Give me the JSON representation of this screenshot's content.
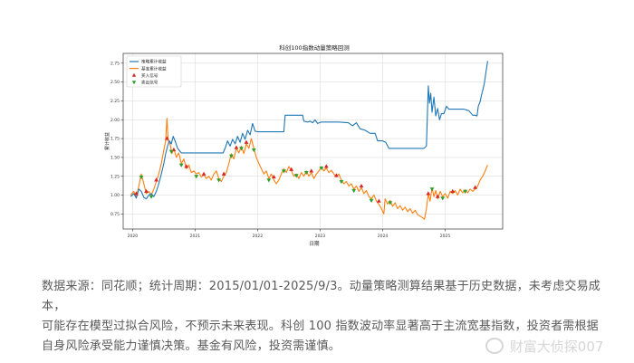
{
  "chart_data": {
    "type": "line",
    "title": "科创100指数动量策略回测",
    "xlabel": "日期",
    "ylabel": "累计收益",
    "xlim": [
      2019.85,
      2025.92
    ],
    "ylim": [
      0.55,
      2.88
    ],
    "x_ticks": [
      {
        "v": 2020,
        "label": "2020"
      },
      {
        "v": 2021,
        "label": "2021"
      },
      {
        "v": 2022,
        "label": "2022"
      },
      {
        "v": 2023,
        "label": "2023"
      },
      {
        "v": 2024,
        "label": "2024"
      },
      {
        "v": 2025,
        "label": "2025"
      }
    ],
    "y_ticks": [
      {
        "v": 0.75,
        "label": "0.75"
      },
      {
        "v": 1.0,
        "label": "1.00"
      },
      {
        "v": 1.25,
        "label": "1.25"
      },
      {
        "v": 1.5,
        "label": "1.50"
      },
      {
        "v": 1.75,
        "label": "1.75"
      },
      {
        "v": 2.0,
        "label": "2.00"
      },
      {
        "v": 2.25,
        "label": "2.25"
      },
      {
        "v": 2.5,
        "label": "2.50"
      },
      {
        "v": 2.75,
        "label": "2.75"
      }
    ],
    "grid": true,
    "legend_position": "top-left",
    "legend": [
      {
        "label": "策略累计收益",
        "kind": "line",
        "color": "#1f77b4"
      },
      {
        "label": "基准累计收益",
        "kind": "line",
        "color": "#ff7f0e"
      },
      {
        "label": "买入信号",
        "kind": "marker-up",
        "color": "#d62728"
      },
      {
        "label": "卖出信号",
        "kind": "marker-down",
        "color": "#2ca02c"
      }
    ],
    "series": [
      {
        "name": "策略累计收益",
        "color": "#1f77b4",
        "points": [
          [
            2019.97,
            0.98
          ],
          [
            2020.02,
            1.02
          ],
          [
            2020.06,
            0.96
          ],
          [
            2020.1,
            1.08
          ],
          [
            2020.14,
            1.05
          ],
          [
            2020.18,
            0.97
          ],
          [
            2020.22,
            0.95
          ],
          [
            2020.26,
            1.0
          ],
          [
            2020.3,
            1.02
          ],
          [
            2020.34,
            0.98
          ],
          [
            2020.38,
            1.05
          ],
          [
            2020.42,
            1.15
          ],
          [
            2020.46,
            1.28
          ],
          [
            2020.5,
            1.42
          ],
          [
            2020.53,
            1.55
          ],
          [
            2020.56,
            1.65
          ],
          [
            2020.59,
            1.72
          ],
          [
            2020.62,
            1.68
          ],
          [
            2020.65,
            1.78
          ],
          [
            2020.68,
            1.72
          ],
          [
            2020.72,
            1.62
          ],
          [
            2020.78,
            1.56
          ],
          [
            2020.83,
            1.56
          ],
          [
            2021.0,
            1.56
          ],
          [
            2021.2,
            1.56
          ],
          [
            2021.35,
            1.56
          ],
          [
            2021.45,
            1.56
          ],
          [
            2021.48,
            1.62
          ],
          [
            2021.52,
            1.72
          ],
          [
            2021.56,
            1.65
          ],
          [
            2021.6,
            1.74
          ],
          [
            2021.64,
            1.68
          ],
          [
            2021.68,
            1.78
          ],
          [
            2021.72,
            1.7
          ],
          [
            2021.76,
            1.82
          ],
          [
            2021.8,
            1.74
          ],
          [
            2021.84,
            1.86
          ],
          [
            2021.88,
            1.8
          ],
          [
            2021.92,
            1.95
          ],
          [
            2021.96,
            1.85
          ],
          [
            2022.0,
            1.84
          ],
          [
            2022.1,
            1.84
          ],
          [
            2022.2,
            1.84
          ],
          [
            2022.35,
            1.84
          ],
          [
            2022.42,
            1.84
          ],
          [
            2022.44,
            2.06
          ],
          [
            2022.6,
            2.06
          ],
          [
            2022.72,
            2.06
          ],
          [
            2022.74,
            1.98
          ],
          [
            2022.8,
            1.97
          ],
          [
            2022.84,
            1.98
          ],
          [
            2022.88,
            1.96
          ],
          [
            2022.92,
            2.0
          ],
          [
            2022.96,
            1.95
          ],
          [
            2023.02,
            1.97
          ],
          [
            2023.1,
            1.97
          ],
          [
            2023.2,
            1.97
          ],
          [
            2023.3,
            1.97
          ],
          [
            2023.45,
            1.96
          ],
          [
            2023.52,
            1.92
          ],
          [
            2023.58,
            1.96
          ],
          [
            2023.64,
            1.88
          ],
          [
            2023.72,
            1.86
          ],
          [
            2023.8,
            1.82
          ],
          [
            2023.88,
            1.82
          ],
          [
            2023.92,
            1.72
          ],
          [
            2024.0,
            1.72
          ],
          [
            2024.05,
            1.7
          ],
          [
            2024.1,
            1.62
          ],
          [
            2024.2,
            1.62
          ],
          [
            2024.35,
            1.62
          ],
          [
            2024.5,
            1.62
          ],
          [
            2024.62,
            1.62
          ],
          [
            2024.66,
            1.62
          ],
          [
            2024.7,
            1.65
          ],
          [
            2024.73,
            2.45
          ],
          [
            2024.75,
            2.22
          ],
          [
            2024.77,
            2.35
          ],
          [
            2024.79,
            2.1
          ],
          [
            2024.82,
            2.3
          ],
          [
            2024.85,
            2.05
          ],
          [
            2024.88,
            2.15
          ],
          [
            2024.91,
            2.0
          ],
          [
            2024.94,
            2.08
          ],
          [
            2024.98,
            2.08
          ],
          [
            2025.02,
            2.18
          ],
          [
            2025.06,
            2.14
          ],
          [
            2025.12,
            2.14
          ],
          [
            2025.2,
            2.14
          ],
          [
            2025.3,
            2.14
          ],
          [
            2025.38,
            2.12
          ],
          [
            2025.44,
            2.06
          ],
          [
            2025.48,
            2.06
          ],
          [
            2025.51,
            2.05
          ],
          [
            2025.53,
            2.18
          ],
          [
            2025.56,
            2.24
          ],
          [
            2025.58,
            2.32
          ],
          [
            2025.61,
            2.42
          ],
          [
            2025.63,
            2.5
          ],
          [
            2025.65,
            2.62
          ],
          [
            2025.67,
            2.72
          ],
          [
            2025.68,
            2.78
          ]
        ]
      },
      {
        "name": "基准累计收益",
        "color": "#ff7f0e",
        "points": [
          [
            2019.97,
            1.0
          ],
          [
            2020.02,
            1.05
          ],
          [
            2020.06,
            0.97
          ],
          [
            2020.1,
            1.12
          ],
          [
            2020.14,
            1.28
          ],
          [
            2020.18,
            1.15
          ],
          [
            2020.22,
            1.02
          ],
          [
            2020.26,
            1.05
          ],
          [
            2020.3,
            1.0
          ],
          [
            2020.34,
            1.08
          ],
          [
            2020.38,
            1.18
          ],
          [
            2020.42,
            1.28
          ],
          [
            2020.46,
            1.42
          ],
          [
            2020.5,
            1.6
          ],
          [
            2020.53,
            1.72
          ],
          [
            2020.55,
            2.02
          ],
          [
            2020.57,
            1.72
          ],
          [
            2020.6,
            1.68
          ],
          [
            2020.63,
            1.55
          ],
          [
            2020.66,
            1.62
          ],
          [
            2020.7,
            1.5
          ],
          [
            2020.74,
            1.56
          ],
          [
            2020.78,
            1.42
          ],
          [
            2020.82,
            1.48
          ],
          [
            2020.86,
            1.35
          ],
          [
            2020.9,
            1.4
          ],
          [
            2020.94,
            1.3
          ],
          [
            2020.98,
            1.32
          ],
          [
            2021.02,
            1.28
          ],
          [
            2021.06,
            1.3
          ],
          [
            2021.1,
            1.24
          ],
          [
            2021.14,
            1.27
          ],
          [
            2021.18,
            1.22
          ],
          [
            2021.22,
            1.25
          ],
          [
            2021.26,
            1.2
          ],
          [
            2021.3,
            1.28
          ],
          [
            2021.34,
            1.32
          ],
          [
            2021.38,
            1.22
          ],
          [
            2021.42,
            1.18
          ],
          [
            2021.46,
            1.25
          ],
          [
            2021.5,
            1.3
          ],
          [
            2021.54,
            1.42
          ],
          [
            2021.58,
            1.55
          ],
          [
            2021.62,
            1.48
          ],
          [
            2021.66,
            1.62
          ],
          [
            2021.7,
            1.56
          ],
          [
            2021.74,
            1.65
          ],
          [
            2021.78,
            1.55
          ],
          [
            2021.82,
            1.68
          ],
          [
            2021.86,
            1.62
          ],
          [
            2021.9,
            1.75
          ],
          [
            2021.94,
            1.62
          ],
          [
            2021.98,
            1.5
          ],
          [
            2022.02,
            1.42
          ],
          [
            2022.06,
            1.35
          ],
          [
            2022.1,
            1.28
          ],
          [
            2022.14,
            1.32
          ],
          [
            2022.18,
            1.22
          ],
          [
            2022.22,
            1.28
          ],
          [
            2022.26,
            1.2
          ],
          [
            2022.3,
            1.15
          ],
          [
            2022.34,
            1.2
          ],
          [
            2022.38,
            1.28
          ],
          [
            2022.42,
            1.35
          ],
          [
            2022.46,
            1.3
          ],
          [
            2022.5,
            1.38
          ],
          [
            2022.54,
            1.32
          ],
          [
            2022.58,
            1.25
          ],
          [
            2022.62,
            1.28
          ],
          [
            2022.66,
            1.22
          ],
          [
            2022.7,
            1.3
          ],
          [
            2022.74,
            1.25
          ],
          [
            2022.78,
            1.32
          ],
          [
            2022.82,
            1.25
          ],
          [
            2022.86,
            1.3
          ],
          [
            2022.9,
            1.22
          ],
          [
            2022.94,
            1.28
          ],
          [
            2022.98,
            1.32
          ],
          [
            2023.02,
            1.38
          ],
          [
            2023.06,
            1.32
          ],
          [
            2023.1,
            1.36
          ],
          [
            2023.14,
            1.3
          ],
          [
            2023.18,
            1.33
          ],
          [
            2023.22,
            1.28
          ],
          [
            2023.26,
            1.24
          ],
          [
            2023.3,
            1.28
          ],
          [
            2023.34,
            1.2
          ],
          [
            2023.38,
            1.15
          ],
          [
            2023.42,
            1.18
          ],
          [
            2023.46,
            1.12
          ],
          [
            2023.5,
            1.15
          ],
          [
            2023.54,
            1.08
          ],
          [
            2023.58,
            1.12
          ],
          [
            2023.62,
            1.05
          ],
          [
            2023.66,
            1.1
          ],
          [
            2023.7,
            1.02
          ],
          [
            2023.74,
            1.06
          ],
          [
            2023.78,
            0.98
          ],
          [
            2023.82,
            0.95
          ],
          [
            2023.86,
            1.0
          ],
          [
            2023.9,
            0.92
          ],
          [
            2023.94,
            0.88
          ],
          [
            2023.98,
            0.82
          ],
          [
            2024.02,
            0.75
          ],
          [
            2024.04,
            0.95
          ],
          [
            2024.08,
            0.88
          ],
          [
            2024.12,
            0.93
          ],
          [
            2024.16,
            0.85
          ],
          [
            2024.2,
            0.9
          ],
          [
            2024.24,
            0.82
          ],
          [
            2024.28,
            0.86
          ],
          [
            2024.32,
            0.8
          ],
          [
            2024.36,
            0.84
          ],
          [
            2024.4,
            0.78
          ],
          [
            2024.44,
            0.82
          ],
          [
            2024.48,
            0.76
          ],
          [
            2024.52,
            0.8
          ],
          [
            2024.56,
            0.74
          ],
          [
            2024.6,
            0.72
          ],
          [
            2024.64,
            0.7
          ],
          [
            2024.67,
            0.68
          ],
          [
            2024.7,
            0.82
          ],
          [
            2024.73,
            1.02
          ],
          [
            2024.76,
            0.92
          ],
          [
            2024.79,
            1.1
          ],
          [
            2024.82,
            0.98
          ],
          [
            2024.85,
            1.06
          ],
          [
            2024.88,
            0.95
          ],
          [
            2024.92,
            1.05
          ],
          [
            2024.96,
            0.98
          ],
          [
            2025.0,
            1.02
          ],
          [
            2025.04,
            0.96
          ],
          [
            2025.08,
            1.05
          ],
          [
            2025.12,
            1.02
          ],
          [
            2025.16,
            1.06
          ],
          [
            2025.2,
            1.0
          ],
          [
            2025.24,
            1.08
          ],
          [
            2025.28,
            1.03
          ],
          [
            2025.32,
            1.07
          ],
          [
            2025.36,
            1.03
          ],
          [
            2025.4,
            1.08
          ],
          [
            2025.44,
            1.05
          ],
          [
            2025.48,
            1.08
          ],
          [
            2025.52,
            1.12
          ],
          [
            2025.56,
            1.2
          ],
          [
            2025.6,
            1.25
          ],
          [
            2025.64,
            1.32
          ],
          [
            2025.68,
            1.4
          ]
        ]
      }
    ],
    "buy_signals": [
      [
        2020.06,
        1.02
      ],
      [
        2020.22,
        1.05
      ],
      [
        2020.38,
        1.2
      ],
      [
        2020.55,
        1.75
      ],
      [
        2020.66,
        1.6
      ],
      [
        2020.86,
        1.38
      ],
      [
        2021.14,
        1.28
      ],
      [
        2021.46,
        1.28
      ],
      [
        2021.66,
        1.63
      ],
      [
        2021.82,
        1.7
      ],
      [
        2022.26,
        1.24
      ],
      [
        2022.54,
        1.34
      ],
      [
        2022.86,
        1.32
      ],
      [
        2023.1,
        1.38
      ],
      [
        2023.26,
        1.26
      ],
      [
        2023.66,
        1.12
      ],
      [
        2023.94,
        0.92
      ],
      [
        2024.73,
        1.02
      ],
      [
        2024.88,
        0.98
      ],
      [
        2025.12,
        1.05
      ],
      [
        2025.48,
        1.1
      ]
    ],
    "sell_signals": [
      [
        2020.14,
        1.24
      ],
      [
        2020.3,
        0.98
      ],
      [
        2020.62,
        1.58
      ],
      [
        2020.78,
        1.4
      ],
      [
        2021.02,
        1.25
      ],
      [
        2021.38,
        1.2
      ],
      [
        2021.58,
        1.52
      ],
      [
        2021.74,
        1.62
      ],
      [
        2021.94,
        1.6
      ],
      [
        2022.18,
        1.2
      ],
      [
        2022.42,
        1.32
      ],
      [
        2022.62,
        1.26
      ],
      [
        2022.78,
        1.3
      ],
      [
        2023.02,
        1.36
      ],
      [
        2023.34,
        1.18
      ],
      [
        2023.54,
        1.06
      ],
      [
        2023.82,
        0.93
      ],
      [
        2024.12,
        0.9
      ],
      [
        2024.79,
        1.08
      ],
      [
        2024.96,
        0.96
      ],
      [
        2025.32,
        1.05
      ]
    ]
  },
  "caption": {
    "lines": [
      "数据来源：同花顺；统计周期：2015/01/01-2025/9/3。动量策略测算结果基于历史数据，未考虑交易成本，",
      "可能存在模型过拟合风险，不预示未来表现。科创 100 指数波动率显著高于主流宽基指数，投资者需根据",
      "自身风险承受能力谨慎决策。基金有风险，投资需谨慎。"
    ]
  },
  "watermark": {
    "text": "财富大侦探007"
  }
}
